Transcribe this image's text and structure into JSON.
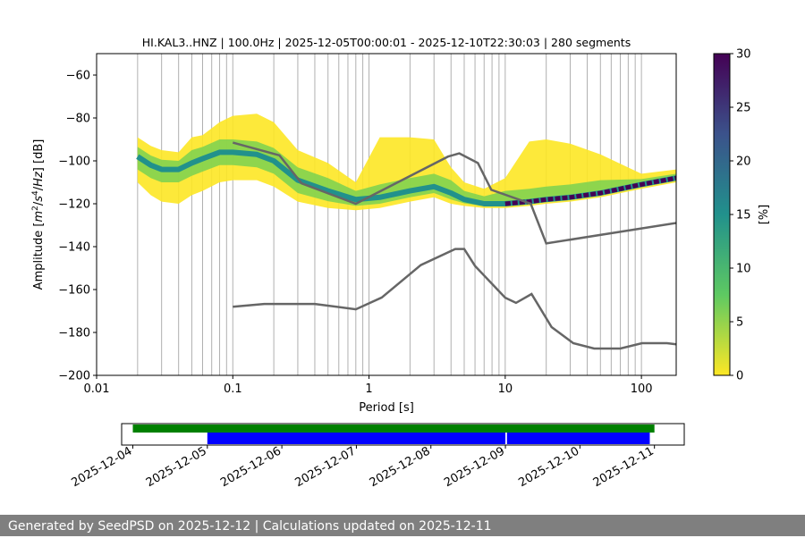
{
  "chart_data": [
    {
      "type": "heatmap",
      "title": "HI.KAL3..HNZ | 100.0Hz | 2025-12-05T00:00:01 - 2025-12-10T22:30:03 | 280 segments",
      "xlabel": "Period [s]",
      "ylabel_parts": [
        "Amplitude [",
        "m",
        "2",
        "/",
        "s",
        "4",
        "/",
        "Hz",
        "] [dB]"
      ],
      "x_scale": "log",
      "xlim": [
        0.01,
        180
      ],
      "ylim": [
        -200,
        -50
      ],
      "x_ticks": [
        {
          "v": 0.01,
          "label": "0.01"
        },
        {
          "v": 0.1,
          "label": "0.1"
        },
        {
          "v": 1,
          "label": "1"
        },
        {
          "v": 10,
          "label": "10"
        },
        {
          "v": 100,
          "label": "100"
        }
      ],
      "y_ticks": [
        {
          "v": -60,
          "label": "−60"
        },
        {
          "v": -80,
          "label": "−80"
        },
        {
          "v": -100,
          "label": "−100"
        },
        {
          "v": -120,
          "label": "−120"
        },
        {
          "v": -140,
          "label": "−140"
        },
        {
          "v": -160,
          "label": "−160"
        },
        {
          "v": -180,
          "label": "−180"
        },
        {
          "v": -200,
          "label": "−200"
        }
      ],
      "grid": "vertical",
      "colorbar": {
        "label": "[%]",
        "range": [
          0,
          30
        ],
        "ticks": [
          {
            "v": 0,
            "label": "0"
          },
          {
            "v": 5,
            "label": "5"
          },
          {
            "v": 10,
            "label": "10"
          },
          {
            "v": 15,
            "label": "15"
          },
          {
            "v": 20,
            "label": "20"
          },
          {
            "v": 25,
            "label": "25"
          },
          {
            "v": 30,
            "label": "30"
          }
        ],
        "colors": [
          "#fde725",
          "#5ec962",
          "#21918c",
          "#3b528b",
          "#440154"
        ]
      },
      "band": {
        "name": "PSD probability density",
        "x": [
          0.02,
          0.025,
          0.03,
          0.04,
          0.05,
          0.06,
          0.08,
          0.1,
          0.15,
          0.2,
          0.3,
          0.5,
          0.8,
          1.2,
          2,
          3,
          4,
          5,
          7,
          10,
          15,
          20,
          30,
          50,
          100,
          180
        ],
        "y": [
          -98,
          -102,
          -104,
          -104,
          -101,
          -99,
          -96,
          -96,
          -97,
          -100,
          -109,
          -114,
          -118,
          -117,
          -114,
          -112,
          -115,
          -118,
          -120,
          -120,
          -119,
          -118,
          -117,
          -115,
          -111,
          -108
        ],
        "upper_spread": [
          9,
          9,
          9,
          8,
          12,
          11,
          14,
          17,
          19,
          18,
          14,
          13,
          8,
          28,
          25,
          22,
          12,
          8,
          7,
          12,
          28,
          28,
          25,
          18,
          5,
          4
        ],
        "lower_spread": [
          12,
          14,
          15,
          16,
          15,
          15,
          14,
          13,
          12,
          12,
          10,
          8,
          5,
          5,
          5,
          5,
          5,
          3,
          2,
          2,
          2,
          2,
          2,
          2,
          2,
          2
        ]
      },
      "series": [
        {
          "name": "NHNM",
          "x": [
            0.1,
            0.22,
            0.32,
            0.8,
            3.8,
            4.6,
            6.3,
            7.9,
            15.4,
            20,
            354.8
          ],
          "y": [
            -91.5,
            -97.4,
            -110.5,
            -120,
            -98,
            -96.5,
            -101,
            -113.5,
            -120,
            -138.5,
            -126
          ],
          "color": "#666666"
        },
        {
          "name": "NLNM",
          "x": [
            0.1,
            0.17,
            0.4,
            0.8,
            1.24,
            2.4,
            4.3,
            5,
            6,
            10,
            12,
            15.6,
            21.9,
            31.6,
            45,
            70,
            101,
            154,
            180
          ],
          "y": [
            -168,
            -166.7,
            -166.7,
            -169.2,
            -163.7,
            -148.6,
            -141.1,
            -141.1,
            -149,
            -163.8,
            -166.2,
            -162.1,
            -177.5,
            -185,
            -187.5,
            -187.5,
            -185,
            -185,
            -185.5
          ],
          "color": "#666666"
        }
      ]
    },
    {
      "type": "timeline",
      "x_ticks": [
        "2025-12-04",
        "2025-12-05",
        "2025-12-06",
        "2025-12-07",
        "2025-12-08",
        "2025-12-09",
        "2025-12-10",
        "2025-12-11"
      ],
      "x_range_days": [
        "2025-12-03T20:24",
        "2025-12-11T09:36"
      ],
      "rows": [
        {
          "color": "#008000",
          "segments": [
            [
              "2025-12-04T00:00",
              "2025-12-11T00:00"
            ]
          ]
        },
        {
          "color": "#0000ff",
          "segments": [
            [
              "2025-12-05T00:00",
              "2025-12-09T00:00"
            ],
            [
              "2025-12-09T00:30",
              "2025-12-10T22:30"
            ]
          ]
        }
      ]
    }
  ],
  "footer": {
    "text": "Generated by SeedPSD on 2025-12-12 | Calculations updated on 2025-12-11"
  }
}
